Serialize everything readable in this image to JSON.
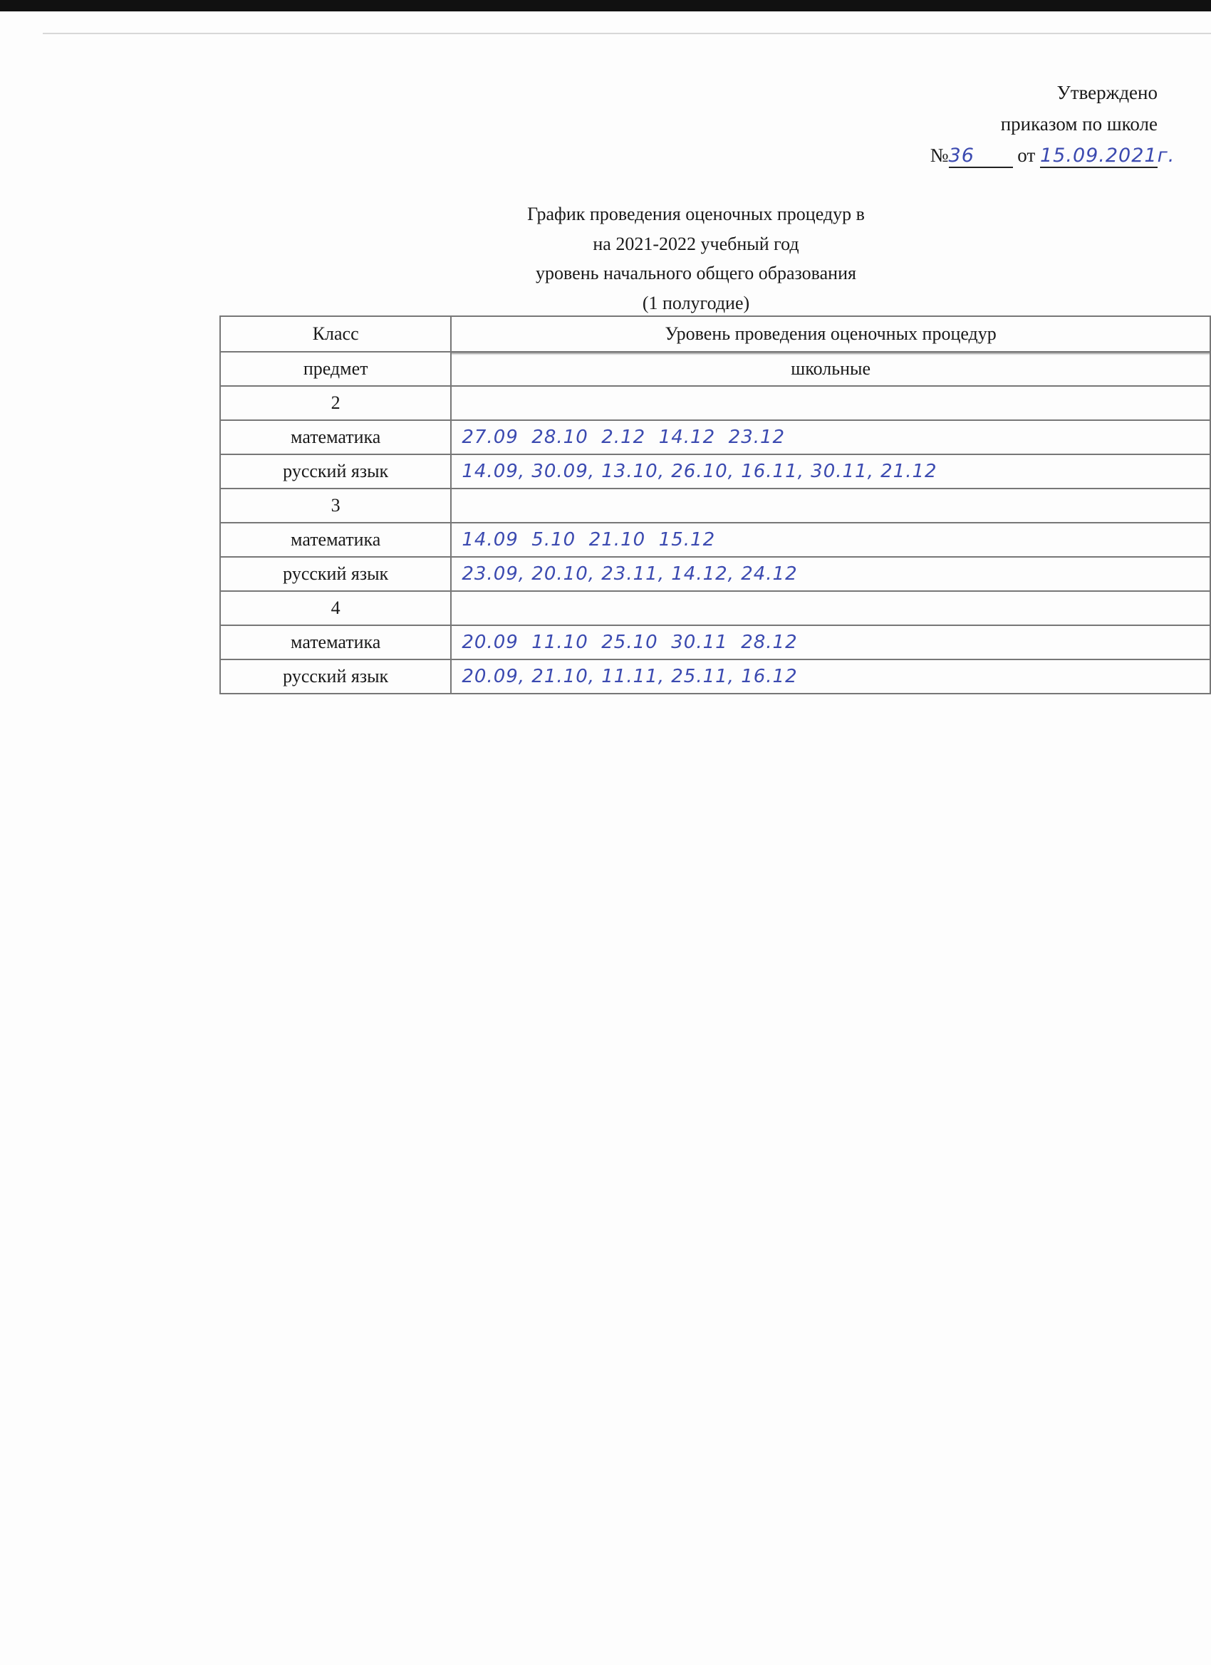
{
  "approval": {
    "line1": "Утверждено",
    "line2": "приказом по школе",
    "number_prefix": "№",
    "number": "36",
    "date_prefix": "от",
    "date": "15.09.2021г."
  },
  "title": {
    "line1": "График проведения оценочных процедур в",
    "line2": "на 2021-2022 учебный год",
    "line3": "уровень начального общего образования",
    "line4": "(1 полугодие)"
  },
  "table": {
    "header": {
      "col1": "Класс",
      "col2": "Уровень проведения оценочных процедур"
    },
    "subheader": {
      "col1": "предмет",
      "col2": "школьные"
    },
    "rows": [
      {
        "subject": "2",
        "dates": ""
      },
      {
        "subject": "математика",
        "dates": "27.09  28.10  2.12  14.12  23.12"
      },
      {
        "subject": "русский язык",
        "dates": "14.09, 30.09, 13.10, 26.10, 16.11, 30.11, 21.12"
      },
      {
        "subject": "3",
        "dates": ""
      },
      {
        "subject": "математика",
        "dates": "14.09  5.10  21.10  15.12"
      },
      {
        "subject": "русский язык",
        "dates": "23.09, 20.10, 23.11, 14.12, 24.12"
      },
      {
        "subject": "4",
        "dates": ""
      },
      {
        "subject": "математика",
        "dates": "20.09  11.10  25.10  30.11  28.12"
      },
      {
        "subject": "русский язык",
        "dates": "20.09, 21.10, 11.11, 25.11, 16.12"
      }
    ]
  },
  "colors": {
    "ink": "#3b4ab0"
  }
}
